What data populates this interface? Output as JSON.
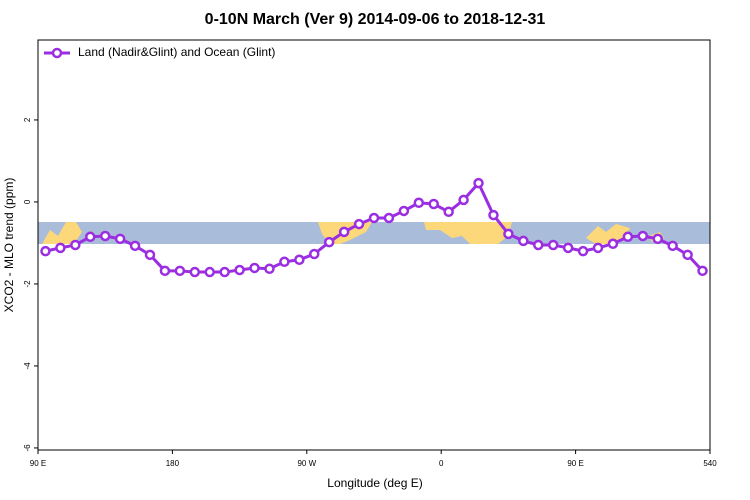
{
  "chart_data": {
    "type": "line",
    "title": "0-10N March (Ver 9)   2014-09-06 to 2018-12-31",
    "x_label": "Longitude (deg E)",
    "y_label": "XCO2 - MLO trend (ppm)",
    "x": [
      95,
      105,
      115,
      125,
      135,
      145,
      155,
      165,
      175,
      185,
      195,
      205,
      215,
      225,
      235,
      245,
      255,
      265,
      275,
      285,
      295,
      305,
      315,
      325,
      335,
      345,
      355,
      365,
      375,
      385,
      395,
      405,
      415,
      425,
      435,
      445,
      455,
      465,
      475,
      485,
      495,
      505,
      515,
      525,
      535
    ],
    "series": [
      {
        "name": "Land (Nadir&Glint) and Ocean (Glint)",
        "color": "#9a2ee0",
        "values": [
          -1.2,
          -1.12,
          -1.05,
          -0.85,
          -0.83,
          -0.9,
          -1.07,
          -1.29,
          -1.68,
          -1.68,
          -1.71,
          -1.71,
          -1.71,
          -1.66,
          -1.61,
          -1.63,
          -1.46,
          -1.41,
          -1.27,
          -0.98,
          -0.73,
          -0.54,
          -0.39,
          -0.39,
          -0.22,
          -0.02,
          -0.05,
          -0.24,
          0.05,
          0.46,
          -0.32,
          -0.78,
          -0.95,
          -1.05,
          -1.05,
          -1.12,
          -1.2,
          -1.12,
          -1.02,
          -0.85,
          -0.83,
          -0.9,
          -1.07,
          -1.29,
          -1.68
        ]
      }
    ],
    "xlim": [
      90,
      540
    ],
    "xticks": [
      {
        "value": 90,
        "label": "90 E"
      },
      180,
      {
        "value": 270,
        "label": "90 W"
      },
      {
        "value": 360,
        "label": "0"
      },
      {
        "value": 450,
        "label": "90 E"
      },
      540
    ],
    "ylim": [
      -6.05,
      3.95
    ],
    "yticks": [
      -6,
      -4,
      -2,
      0,
      2
    ],
    "legend": "upper left"
  }
}
